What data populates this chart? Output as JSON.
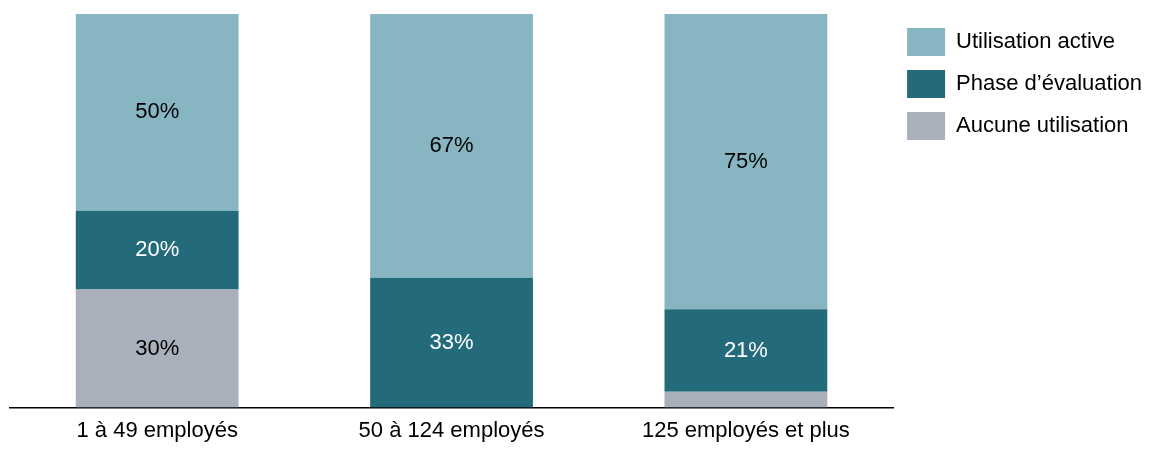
{
  "chart_data": {
    "type": "bar",
    "stacked": true,
    "categories": [
      "1 à 49 employés",
      "50 à 124 employés",
      "125 employés et plus"
    ],
    "series": [
      {
        "name": "Aucune utilisation",
        "color": "#a9b0bc",
        "values": [
          30,
          0,
          4
        ],
        "value_labels": [
          "30%",
          null,
          null
        ]
      },
      {
        "name": "Phase d’évaluation",
        "color": "#236b7b",
        "values": [
          20,
          33,
          21
        ],
        "value_labels": [
          "20%",
          "33%",
          "21%"
        ]
      },
      {
        "name": "Utilisation active",
        "color": "#87b6c2",
        "values": [
          50,
          67,
          75
        ],
        "value_labels": [
          "50%",
          "67%",
          "75%"
        ]
      }
    ],
    "ylim": [
      0,
      100
    ],
    "tick_labels": "x",
    "grid": false,
    "legend": "top right"
  }
}
